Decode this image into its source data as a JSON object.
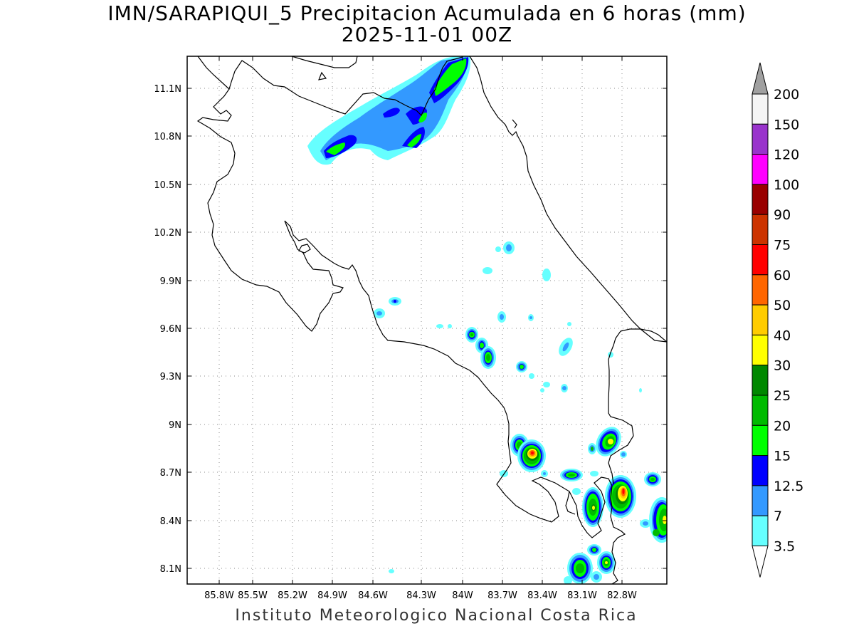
{
  "title": {
    "line1": "IMN/SARAPIQUI_5 Precipitacion Acumulada en 6 horas (mm)",
    "line2": "2025-11-01 00Z"
  },
  "footer": "Instituto Meteorologico Nacional Costa Rica",
  "map": {
    "lon_range": [
      -86.1,
      -83.1
    ],
    "lat_range": [
      8.0,
      11.3
    ],
    "lon_ticks": [
      "85.8W",
      "85.5W",
      "85.2W",
      "84.9W",
      "84.6W",
      "84.3W",
      "84W",
      "83.7W",
      "83.4W",
      "83.1W",
      "82.8W"
    ],
    "lat_ticks": [
      "11.1N",
      "10.8N",
      "10.5N",
      "10.2N",
      "9.9N",
      "9.6N",
      "9.3N",
      "9N",
      "8.7N",
      "8.4N",
      "8.1N"
    ],
    "grid": true
  },
  "legend": {
    "labels": [
      "200",
      "150",
      "120",
      "100",
      "90",
      "75",
      "60",
      "50",
      "40",
      "30",
      "25",
      "20",
      "15",
      "12.5",
      "7",
      "3.5"
    ],
    "colors": [
      "#f5f5f5",
      "#9933cc",
      "#ff00ff",
      "#990000",
      "#cc3300",
      "#ff0000",
      "#ff6600",
      "#ffcc00",
      "#ffff00",
      "#008800",
      "#00bb00",
      "#00ff00",
      "#0000ff",
      "#3399ff",
      "#66ffff"
    ],
    "top_arrow_color": "#a0a0a0",
    "bottom_arrow_color": "#ffffff"
  },
  "precip_colors": {
    "c3_5": "#66ffff",
    "c7": "#3399ff",
    "c12_5": "#0000ff",
    "c15": "#00ff00",
    "c20": "#00bb00",
    "c25": "#008800",
    "c40": "#ffff00",
    "c50": "#ffcc00",
    "c60": "#ff6600",
    "c75": "#ff0000"
  }
}
